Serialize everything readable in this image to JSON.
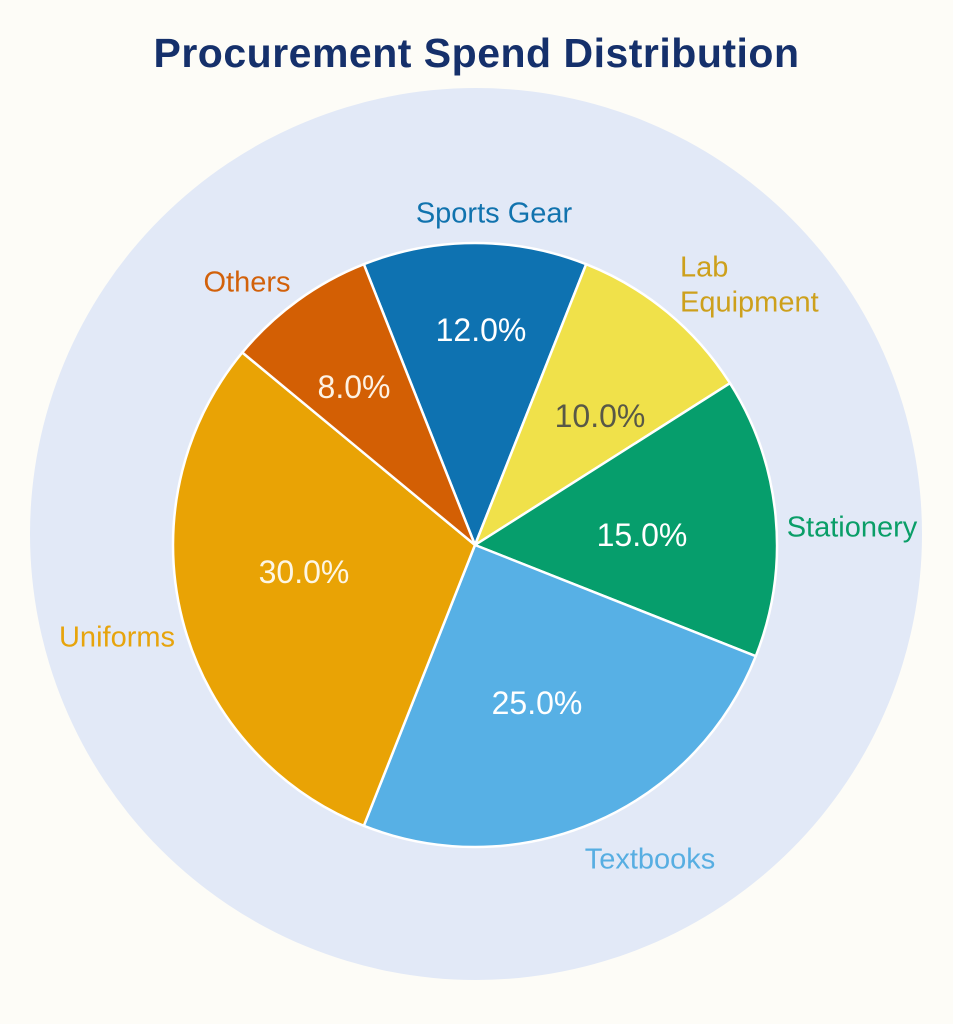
{
  "chart_data": {
    "type": "pie",
    "title": "Procurement Spend Distribution",
    "legend": "none",
    "start_angle_deg": 111.6,
    "direction": "clockwise",
    "background_circle_color": "#e2e9f7",
    "title_color": "#15306b",
    "slice_border_color": "#ffffff",
    "categories": [
      "Sports Gear",
      "Lab Equipment",
      "Stationery",
      "Textbooks",
      "Uniforms",
      "Others"
    ],
    "values": [
      12.0,
      10.0,
      15.0,
      25.0,
      30.0,
      8.0
    ],
    "slices": [
      {
        "label": "Sports Gear",
        "value": 12.0,
        "pct_label": "12.0%",
        "color": "#0e72b1",
        "label_color": "#1173ae",
        "pct_color": "#ffffff"
      },
      {
        "label": "Lab Equipment",
        "value": 10.0,
        "pct_label": "10.0%",
        "color": "#f0e14a",
        "label_color": "#cda01c",
        "pct_color": "#585847"
      },
      {
        "label": "Stationery",
        "value": 15.0,
        "pct_label": "15.0%",
        "color": "#069e6c",
        "label_color": "#0a9e68",
        "pct_color": "#ffffff"
      },
      {
        "label": "Textbooks",
        "value": 25.0,
        "pct_label": "25.0%",
        "color": "#57b0e5",
        "label_color": "#57aee2",
        "pct_color": "#ffffff"
      },
      {
        "label": "Uniforms",
        "value": 30.0,
        "pct_label": "30.0%",
        "color": "#e9a305",
        "label_color": "#e7a40c",
        "pct_color": "#fdf6e4"
      },
      {
        "label": "Others",
        "value": 8.0,
        "pct_label": "8.0%",
        "color": "#d35f04",
        "label_color": "#d2610a",
        "pct_color": "#fdf2e4"
      }
    ]
  }
}
